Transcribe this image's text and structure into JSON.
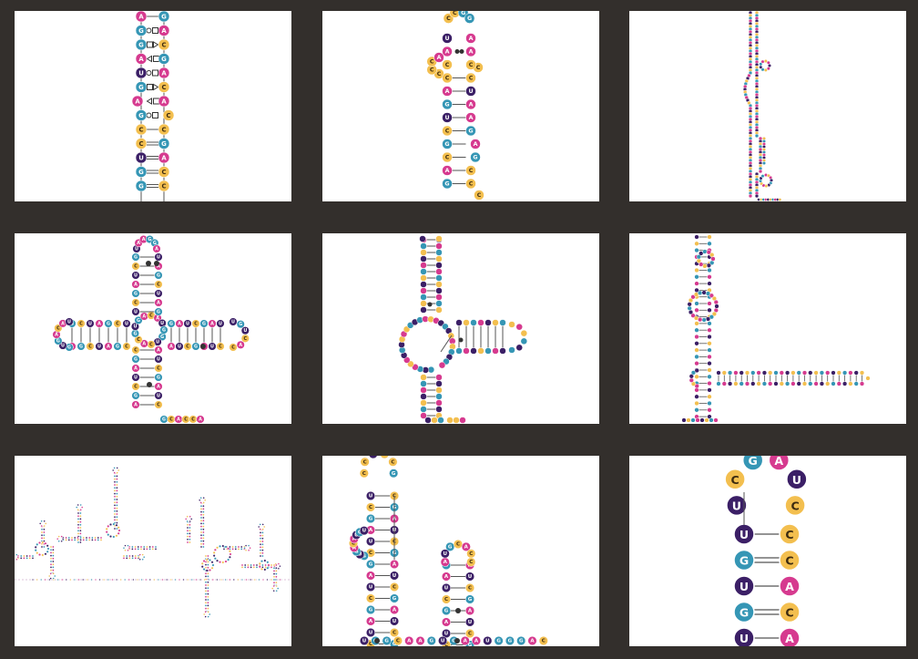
{
  "colors": {
    "A": "#d63a8f",
    "G": "#3596b5",
    "C": "#f3bf4f",
    "U": "#3b1f66",
    "background": "#332f2c",
    "panel": "#ffffff",
    "line": "#555555"
  },
  "panels": [
    {
      "id": "helix-noncanonical",
      "kind": "helix",
      "pairs": [
        [
          "A",
          "G"
        ],
        [
          "G",
          "A"
        ],
        [
          "G",
          "C"
        ],
        [
          "A",
          "G"
        ],
        [
          "U",
          "A"
        ],
        [
          "G",
          "C"
        ],
        [
          "A",
          "A"
        ],
        [
          "G",
          "C"
        ],
        [
          "C",
          "C"
        ],
        [
          "C",
          "G"
        ],
        [
          "U",
          "A"
        ],
        [
          "G",
          "C"
        ],
        [
          "G",
          "C"
        ]
      ]
    },
    {
      "id": "hairpin-small-loop",
      "kind": "hairpin",
      "loop": [
        "C",
        "C",
        "G",
        "G"
      ],
      "pairs": [
        [
          "U",
          "A"
        ],
        [
          "A",
          "A"
        ],
        [
          "C",
          "C"
        ],
        [
          "C",
          "C"
        ],
        [
          "A",
          "U"
        ],
        [
          "G",
          "A"
        ],
        [
          "U",
          "A"
        ],
        [
          "C",
          "G"
        ],
        [
          "G",
          "A"
        ],
        [
          "C",
          "G"
        ],
        [
          "A",
          "C"
        ],
        [
          "G",
          "C"
        ]
      ]
    },
    {
      "id": "long-tiny-helix",
      "kind": "tiny"
    },
    {
      "id": "four-way-junction",
      "kind": "cloverleaf",
      "tail": [
        "G",
        "C",
        "A",
        "C",
        "C",
        "A"
      ]
    },
    {
      "id": "three-way-junction",
      "kind": "threeway",
      "tail": [
        "C",
        "C",
        "A"
      ]
    },
    {
      "id": "long-branched",
      "kind": "branched"
    },
    {
      "id": "large-multiloop",
      "kind": "complex"
    },
    {
      "id": "two-hairpins",
      "kind": "twohairpins",
      "tail": [
        "U",
        "G",
        "G",
        "C",
        "A",
        "A",
        "G",
        "U",
        "G",
        "A",
        "A",
        "U",
        "G",
        "G",
        "G",
        "A",
        "C"
      ]
    },
    {
      "id": "zoomed-hairpin",
      "kind": "zoom",
      "loop": [
        "C",
        "G",
        "A",
        "U",
        "C"
      ],
      "pairs": [
        [
          "U",
          "C"
        ],
        [
          "G",
          "C"
        ],
        [
          "U",
          "A"
        ],
        [
          "G",
          "C"
        ],
        [
          "U",
          "A"
        ],
        [
          "C",
          "G"
        ]
      ]
    }
  ]
}
